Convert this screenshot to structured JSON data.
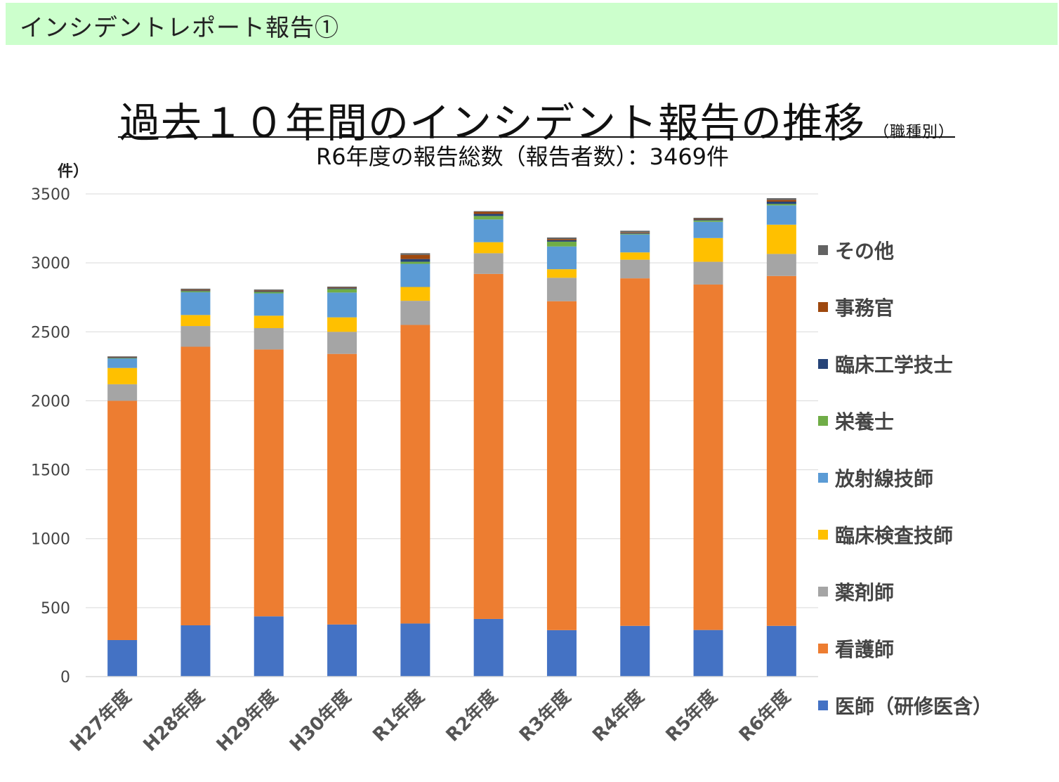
{
  "banner": {
    "text": "インシデントレポート報告①"
  },
  "header": {
    "title": "過去１０年間のインシデント報告の推移",
    "title_small": "（職種別）",
    "subtitle": "R6年度の報告総数（報告者数）：3469件",
    "unit": "件）"
  },
  "chart_data": {
    "type": "bar",
    "stacked": true,
    "categories": [
      "H27年度",
      "H28年度",
      "H29年度",
      "H30年度",
      "R1年度",
      "R2年度",
      "R3年度",
      "R4年度",
      "R5年度",
      "R6年度"
    ],
    "ylim": [
      0,
      3500
    ],
    "yticks": [
      0,
      500,
      1000,
      1500,
      2000,
      2500,
      3000,
      3500
    ],
    "grid": true,
    "legend_position": "right",
    "series": [
      {
        "name": "医師（研修医含）",
        "color": "#4472c4",
        "values": [
          265,
          372,
          437,
          378,
          385,
          418,
          337,
          368,
          338,
          368
        ]
      },
      {
        "name": "看護師",
        "color": "#ed7d31",
        "values": [
          1735,
          2020,
          1935,
          1962,
          2165,
          2502,
          2385,
          2520,
          2505,
          2537
        ]
      },
      {
        "name": "薬剤師",
        "color": "#a5a5a5",
        "values": [
          120,
          150,
          155,
          160,
          175,
          150,
          170,
          135,
          165,
          160
        ]
      },
      {
        "name": "臨床検査技師",
        "color": "#ffc000",
        "values": [
          118,
          80,
          90,
          105,
          100,
          80,
          62,
          53,
          172,
          212
        ]
      },
      {
        "name": "放射線技師",
        "color": "#5b9bd5",
        "values": [
          68,
          165,
          162,
          180,
          168,
          165,
          165,
          130,
          118,
          140
        ]
      },
      {
        "name": "栄養士",
        "color": "#70ad47",
        "values": [
          4,
          8,
          10,
          25,
          15,
          25,
          35,
          5,
          10,
          10
        ]
      },
      {
        "name": "臨床工学技士",
        "color": "#264478",
        "values": [
          5,
          5,
          5,
          6,
          20,
          15,
          10,
          5,
          6,
          17
        ]
      },
      {
        "name": "事務官",
        "color": "#9e480e",
        "values": [
          3,
          5,
          5,
          4,
          30,
          15,
          8,
          5,
          5,
          12
        ]
      },
      {
        "name": "その他",
        "color": "#636363",
        "values": [
          4,
          8,
          8,
          8,
          12,
          5,
          12,
          12,
          8,
          13
        ]
      }
    ]
  }
}
